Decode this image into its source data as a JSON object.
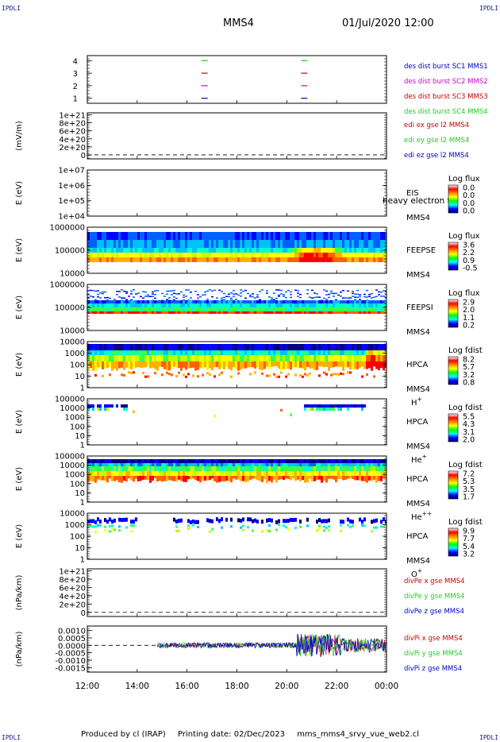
{
  "header": {
    "corner_label": "IPDLI",
    "spacecraft": "MMS4",
    "datetime": "01/Jul/2020 12:00"
  },
  "footer": {
    "produced_by": "Produced by cl (IRAP)",
    "printing_date": "Printing date: 02/Dec/2023",
    "script_name": "mms_mms4_srvy_vue_web2.cl"
  },
  "colors": {
    "red": "#cc0000",
    "green": "#22cc22",
    "blue": "#0000cc",
    "magenta": "#cc00cc",
    "colorbar": [
      "#ffffff",
      "#ff0000",
      "#ff8800",
      "#ffff00",
      "#00ff00",
      "#00ffff",
      "#0000ff",
      "#000080"
    ]
  },
  "chart_data": [
    {
      "type": "line",
      "id": "burst",
      "ylabel": "",
      "yticks": [
        "1",
        "2",
        "3",
        "4"
      ],
      "ylim": [
        0.6,
        4.4
      ],
      "series": [
        {
          "name": "des dist burst SC1 MMS1",
          "color": "blue",
          "y": 1,
          "x": [
            16.7,
            20.7
          ]
        },
        {
          "name": "des dist burst SC2 MMS2",
          "color": "magenta",
          "y": 2,
          "x": [
            16.7,
            20.7
          ]
        },
        {
          "name": "des dist burst SC3 MMS3",
          "color": "red",
          "y": 3,
          "x": [
            16.7,
            20.7
          ]
        },
        {
          "name": "des dist burst SC4 MMS4",
          "color": "green",
          "y": 4,
          "x": [
            16.7,
            20.7
          ]
        }
      ]
    },
    {
      "type": "line",
      "id": "edi",
      "ylabel": "(mV/m)",
      "yticks": [
        "0",
        "2e+20",
        "4e+20",
        "6e+20",
        "8e+20",
        "1e+21"
      ],
      "ylim": [
        -0.1,
        1.05
      ],
      "zero_line": true,
      "series": [
        {
          "name": "edi ex gse l2 MMS4",
          "color": "red"
        },
        {
          "name": "edi ey gse l2 MMS4",
          "color": "green"
        },
        {
          "name": "edi ez gse l2 MMS4",
          "color": "blue"
        }
      ]
    },
    {
      "type": "heatmap",
      "id": "eis",
      "ylabel": "E (eV)",
      "yticks": [
        "1e+04",
        "1e+05",
        "1e+06",
        "1e+07"
      ],
      "instrument": [
        "EIS",
        "MMS4"
      ],
      "overlay_text": "heavy electron to",
      "colorbar_title": "Log flux",
      "colorbar_ticks": [
        "0.0",
        "0.0",
        "0.0",
        "0.0"
      ],
      "empty": true
    },
    {
      "type": "heatmap",
      "id": "feepse",
      "ylabel": "E (eV)",
      "yticks": [
        "10000",
        "100000",
        "1000000"
      ],
      "instrument": [
        "FEEPSE",
        "MMS4"
      ],
      "colorbar_title": "Log flux",
      "colorbar_ticks": [
        "3.6",
        "2.2",
        "0.9",
        "-0.5"
      ]
    },
    {
      "type": "heatmap",
      "id": "feepsi",
      "ylabel": "E (eV)",
      "yticks": [
        "10000",
        "100000",
        "1000000"
      ],
      "instrument": [
        "FEEPSI",
        "MMS4"
      ],
      "colorbar_title": "Log flux",
      "colorbar_ticks": [
        "2.9",
        "2.0",
        "1.1",
        "0.2"
      ]
    },
    {
      "type": "heatmap",
      "id": "hpca_h",
      "ylabel": "E (eV)",
      "yticks": [
        "1",
        "10",
        "100",
        "1000",
        "10000"
      ],
      "instrument": [
        "HPCA",
        "MMS4"
      ],
      "species": "H",
      "charge": "+",
      "colorbar_title": "Log fdist",
      "colorbar_ticks": [
        "8.2",
        "5.7",
        "3.2",
        "0.8"
      ]
    },
    {
      "type": "heatmap",
      "id": "hpca_he1",
      "ylabel": "E (eV)",
      "yticks": [
        "1",
        "10",
        "100",
        "1000",
        "10000",
        "100000"
      ],
      "instrument": [
        "HPCA",
        "MMS4"
      ],
      "species": "He",
      "charge": "+",
      "colorbar_title": "Log fdist",
      "colorbar_ticks": [
        "5.5",
        "4.3",
        "3.1",
        "2.0"
      ]
    },
    {
      "type": "heatmap",
      "id": "hpca_he2",
      "ylabel": "E (eV)",
      "yticks": [
        "1",
        "10",
        "100",
        "1000",
        "10000",
        "100000"
      ],
      "instrument": [
        "HPCA",
        "MMS4"
      ],
      "species": "He",
      "charge": "++",
      "colorbar_title": "Log fdist",
      "colorbar_ticks": [
        "7.2",
        "5.3",
        "3.5",
        "1.7"
      ]
    },
    {
      "type": "heatmap",
      "id": "hpca_o",
      "ylabel": "E (eV)",
      "yticks": [
        "1",
        "10",
        "100",
        "1000",
        "10000"
      ],
      "instrument": [
        "HPCA",
        "MMS4"
      ],
      "species": "O",
      "charge": "+",
      "colorbar_title": "Log fdist",
      "colorbar_ticks": [
        "9.9",
        "7.7",
        "5.4",
        "3.2"
      ]
    },
    {
      "type": "line",
      "id": "divpe",
      "ylabel": "(nPa/km)",
      "yticks": [
        "0",
        "2e+20",
        "4e+20",
        "6e+20",
        "8e+20",
        "1e+21"
      ],
      "ylim": [
        -0.1,
        1.05
      ],
      "zero_line": true,
      "series": [
        {
          "name": "divPe x gse MMS4",
          "color": "red"
        },
        {
          "name": "divPe y gse MMS4",
          "color": "green"
        },
        {
          "name": "divPe z gse MMS4",
          "color": "blue"
        }
      ]
    },
    {
      "type": "line",
      "id": "divpi",
      "ylabel": "(nPa/km)",
      "yticks": [
        "-0.0015",
        "-0.0010",
        "-0.0005",
        "0.0000",
        "0.0005",
        "0.0010"
      ],
      "ylim": [
        -0.0018,
        0.0013
      ],
      "zero_line": true,
      "data_start": 14.8,
      "series": [
        {
          "name": "divPi x gse MMS4",
          "color": "red"
        },
        {
          "name": "divPi y gse MMS4",
          "color": "green"
        },
        {
          "name": "divPi z gse MMS4",
          "color": "blue"
        }
      ]
    }
  ],
  "time_axis": {
    "xlim": [
      12,
      24
    ],
    "ticks": [
      {
        "t": 12,
        "label": "12:00"
      },
      {
        "t": 14,
        "label": "14:00"
      },
      {
        "t": 16,
        "label": "16:00"
      },
      {
        "t": 18,
        "label": "18:00"
      },
      {
        "t": 20,
        "label": "20:00"
      },
      {
        "t": 22,
        "label": "22:00"
      },
      {
        "t": 24,
        "label": "00:00"
      }
    ]
  }
}
